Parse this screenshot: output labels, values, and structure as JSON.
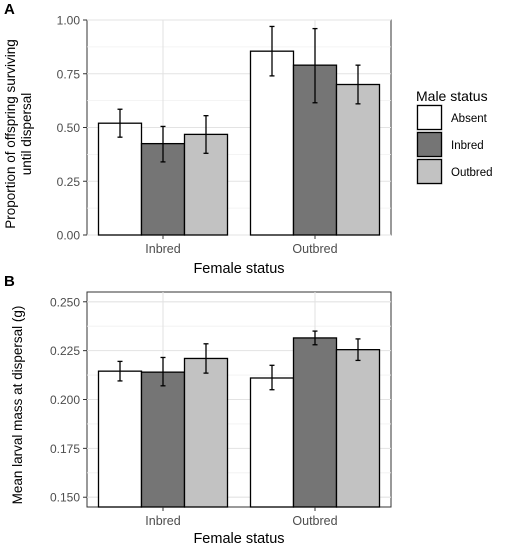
{
  "chart_data": [
    {
      "panel_label": "A",
      "type": "bar",
      "categories": [
        "Inbred",
        "Outbred"
      ],
      "xlabel": "Female status",
      "ylabel": "Proportion of offspring surviving until dispersal",
      "ylabel_lines": [
        "Proportion of offspring surviving",
        "until dispersal"
      ],
      "ylim": [
        0.0,
        1.0
      ],
      "yticks": [
        "0.00",
        "0.25",
        "0.50",
        "0.75",
        "1.00"
      ],
      "grid": true,
      "series": [
        {
          "name": "Absent",
          "values": [
            0.52,
            0.855
          ],
          "err_low": [
            0.455,
            0.74
          ],
          "err_high": [
            0.585,
            0.97
          ]
        },
        {
          "name": "Inbred",
          "values": [
            0.425,
            0.79
          ],
          "err_low": [
            0.34,
            0.615
          ],
          "err_high": [
            0.505,
            0.96
          ]
        },
        {
          "name": "Outbred",
          "values": [
            0.468,
            0.7
          ],
          "err_low": [
            0.38,
            0.61
          ],
          "err_high": [
            0.555,
            0.79
          ]
        }
      ]
    },
    {
      "panel_label": "B",
      "type": "bar",
      "categories": [
        "Inbred",
        "Outbred"
      ],
      "xlabel": "Female status",
      "ylabel": "Mean larval mass at dispersal (g)",
      "ylim": [
        0.145,
        0.255
      ],
      "yticks": [
        "0.150",
        "0.175",
        "0.200",
        "0.225",
        "0.250"
      ],
      "grid": true,
      "series": [
        {
          "name": "Absent",
          "values": [
            0.2145,
            0.211
          ],
          "err_low": [
            0.2095,
            0.205
          ],
          "err_high": [
            0.2195,
            0.2175
          ]
        },
        {
          "name": "Inbred",
          "values": [
            0.214,
            0.2315
          ],
          "err_low": [
            0.207,
            0.228
          ],
          "err_high": [
            0.2215,
            0.235
          ]
        },
        {
          "name": "Outbred",
          "values": [
            0.221,
            0.2255
          ],
          "err_low": [
            0.2135,
            0.22
          ],
          "err_high": [
            0.2285,
            0.231
          ]
        }
      ]
    }
  ],
  "legend": {
    "title": "Male status",
    "placement": "right",
    "items": [
      {
        "label": "Absent",
        "color": "#ffffff"
      },
      {
        "label": "Inbred",
        "color": "#757575"
      },
      {
        "label": "Outbred",
        "color": "#c2c2c2"
      }
    ]
  },
  "colors": {
    "absent": "#ffffff",
    "inbred": "#757575",
    "outbred": "#c2c2c2"
  }
}
